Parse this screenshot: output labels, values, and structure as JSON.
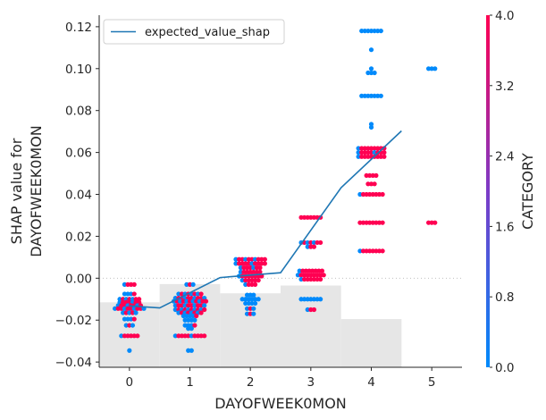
{
  "chart_data": {
    "type": "scatter",
    "xlabel": "DAYOFWEEK0MON",
    "ylabel_lines": [
      "SHAP value for",
      "DAYOFWEEK0MON"
    ],
    "xlim": [
      -0.5,
      5.5
    ],
    "ylim": [
      -0.0425,
      0.1255
    ],
    "x_ticks": [
      0,
      1,
      2,
      3,
      4,
      5
    ],
    "x_tick_labels": [
      "0",
      "1",
      "2",
      "3",
      "4",
      "5"
    ],
    "y_ticks": [
      -0.04,
      -0.02,
      0.0,
      0.02,
      0.04,
      0.06,
      0.08,
      0.1,
      0.12
    ],
    "y_tick_labels": [
      "−0.04",
      "−0.02",
      "0.00",
      "0.02",
      "0.04",
      "0.06",
      "0.08",
      "0.10",
      "0.12"
    ],
    "histogram": {
      "color": "#e6e6e6",
      "bins": [
        {
          "x0": -0.5,
          "x1": 0.5,
          "top": -0.0115
        },
        {
          "x0": 0.5,
          "x1": 1.5,
          "top": -0.0028
        },
        {
          "x0": 1.5,
          "x1": 2.5,
          "top": -0.0072
        },
        {
          "x0": 2.5,
          "x1": 3.5,
          "top": -0.0035
        },
        {
          "x0": 3.5,
          "x1": 4.5,
          "top": -0.0195
        },
        {
          "x0": 4.5,
          "x1": 5.5,
          "top": -0.0425
        }
      ]
    },
    "zero_line": 0.0,
    "expected_value_line": {
      "name": "expected_value_shap",
      "color": "#1f77b4",
      "x": [
        0,
        0.5,
        1.5,
        2.5,
        3.5,
        4.5
      ],
      "y": [
        -0.0132,
        -0.0142,
        0.0003,
        0.0026,
        0.0432,
        0.0703
      ]
    },
    "legend": {
      "entry": "expected_value_shap",
      "position": "top-left"
    },
    "colorbar": {
      "label": "CATEGORY",
      "min": 0.0,
      "max": 4.0,
      "ticks": [
        0.0,
        0.8,
        1.6,
        2.4,
        3.2,
        4.0
      ],
      "tick_labels": [
        "0.0",
        "0.8",
        "1.6",
        "2.4",
        "3.2",
        "4.0"
      ],
      "color_low": "#008afb",
      "color_mid": "#7c3bc7",
      "color_high": "#ff0052"
    },
    "point_groups": [
      {
        "x": 0,
        "rows": [
          {
            "y": -0.003,
            "blue": 1,
            "mag": 3
          },
          {
            "y": -0.0075,
            "blue": 3,
            "mag": 1
          },
          {
            "y": -0.01,
            "blue": 3,
            "mag": 4
          },
          {
            "y": -0.0115,
            "blue": 2,
            "mag": 5
          },
          {
            "y": -0.013,
            "blue": 3,
            "mag": 5
          },
          {
            "y": -0.0145,
            "blue": 4,
            "mag": 6
          },
          {
            "y": -0.0165,
            "blue": 3,
            "mag": 2
          },
          {
            "y": -0.0195,
            "blue": 3,
            "mag": 1
          },
          {
            "y": -0.0225,
            "blue": 2,
            "mag": 1
          },
          {
            "y": -0.0275,
            "blue": 1,
            "mag": 5
          },
          {
            "y": -0.0345,
            "blue": 1,
            "mag": 0
          }
        ]
      },
      {
        "x": 1,
        "rows": [
          {
            "y": -0.003,
            "blue": 2,
            "mag": 1
          },
          {
            "y": -0.0075,
            "blue": 5,
            "mag": 3
          },
          {
            "y": -0.0095,
            "blue": 4,
            "mag": 6
          },
          {
            "y": -0.011,
            "blue": 5,
            "mag": 6
          },
          {
            "y": -0.013,
            "blue": 4,
            "mag": 6
          },
          {
            "y": -0.015,
            "blue": 5,
            "mag": 5
          },
          {
            "y": -0.0165,
            "blue": 5,
            "mag": 3
          },
          {
            "y": -0.018,
            "blue": 4,
            "mag": 1
          },
          {
            "y": -0.02,
            "blue": 4,
            "mag": 0
          },
          {
            "y": -0.0225,
            "blue": 3,
            "mag": 1
          },
          {
            "y": -0.024,
            "blue": 2,
            "mag": 0
          },
          {
            "y": -0.0275,
            "blue": 2,
            "mag": 8
          },
          {
            "y": -0.0345,
            "blue": 2,
            "mag": 0
          }
        ]
      },
      {
        "x": 2,
        "rows": [
          {
            "y": 0.009,
            "blue": 3,
            "mag": 7
          },
          {
            "y": 0.007,
            "blue": 2,
            "mag": 8
          },
          {
            "y": 0.005,
            "blue": 2,
            "mag": 5
          },
          {
            "y": 0.003,
            "blue": 1,
            "mag": 6
          },
          {
            "y": 0.001,
            "blue": 1,
            "mag": 7
          },
          {
            "y": -0.001,
            "blue": 1,
            "mag": 5
          },
          {
            "y": -0.003,
            "blue": 1,
            "mag": 3
          },
          {
            "y": -0.008,
            "blue": 3,
            "mag": 0
          },
          {
            "y": -0.01,
            "blue": 6,
            "mag": 0
          },
          {
            "y": -0.012,
            "blue": 4,
            "mag": 0
          },
          {
            "y": -0.0145,
            "blue": 2,
            "mag": 1
          },
          {
            "y": -0.017,
            "blue": 2,
            "mag": 1
          }
        ]
      },
      {
        "x": 3,
        "rows": [
          {
            "y": 0.029,
            "blue": 0,
            "mag": 7
          },
          {
            "y": 0.017,
            "blue": 3,
            "mag": 4
          },
          {
            "y": 0.015,
            "blue": 1,
            "mag": 2
          },
          {
            "y": 0.0035,
            "blue": 1,
            "mag": 7
          },
          {
            "y": 0.0015,
            "blue": 1,
            "mag": 8
          },
          {
            "y": -0.0005,
            "blue": 1,
            "mag": 6
          },
          {
            "y": -0.01,
            "blue": 7,
            "mag": 0
          },
          {
            "y": -0.015,
            "blue": 1,
            "mag": 2
          }
        ]
      },
      {
        "x": 4,
        "rows": [
          {
            "y": 0.118,
            "blue": 7,
            "mag": 0
          },
          {
            "y": 0.109,
            "blue": 1,
            "mag": 0
          },
          {
            "y": 0.1,
            "blue": 1,
            "mag": 0
          },
          {
            "y": 0.098,
            "blue": 3,
            "mag": 0
          },
          {
            "y": 0.087,
            "blue": 7,
            "mag": 0
          },
          {
            "y": 0.0735,
            "blue": 1,
            "mag": 0
          },
          {
            "y": 0.072,
            "blue": 1,
            "mag": 0
          },
          {
            "y": 0.062,
            "blue": 1,
            "mag": 8
          },
          {
            "y": 0.06,
            "blue": 2,
            "mag": 7
          },
          {
            "y": 0.058,
            "blue": 1,
            "mag": 8
          },
          {
            "y": 0.049,
            "blue": 0,
            "mag": 4
          },
          {
            "y": 0.045,
            "blue": 0,
            "mag": 3
          },
          {
            "y": 0.04,
            "blue": 1,
            "mag": 7
          },
          {
            "y": 0.0265,
            "blue": 0,
            "mag": 8
          },
          {
            "y": 0.013,
            "blue": 1,
            "mag": 7
          }
        ]
      },
      {
        "x": 5,
        "rows": [
          {
            "y": 0.1,
            "blue": 3,
            "mag": 0
          },
          {
            "y": 0.0265,
            "blue": 0,
            "mag": 3
          }
        ]
      }
    ]
  }
}
